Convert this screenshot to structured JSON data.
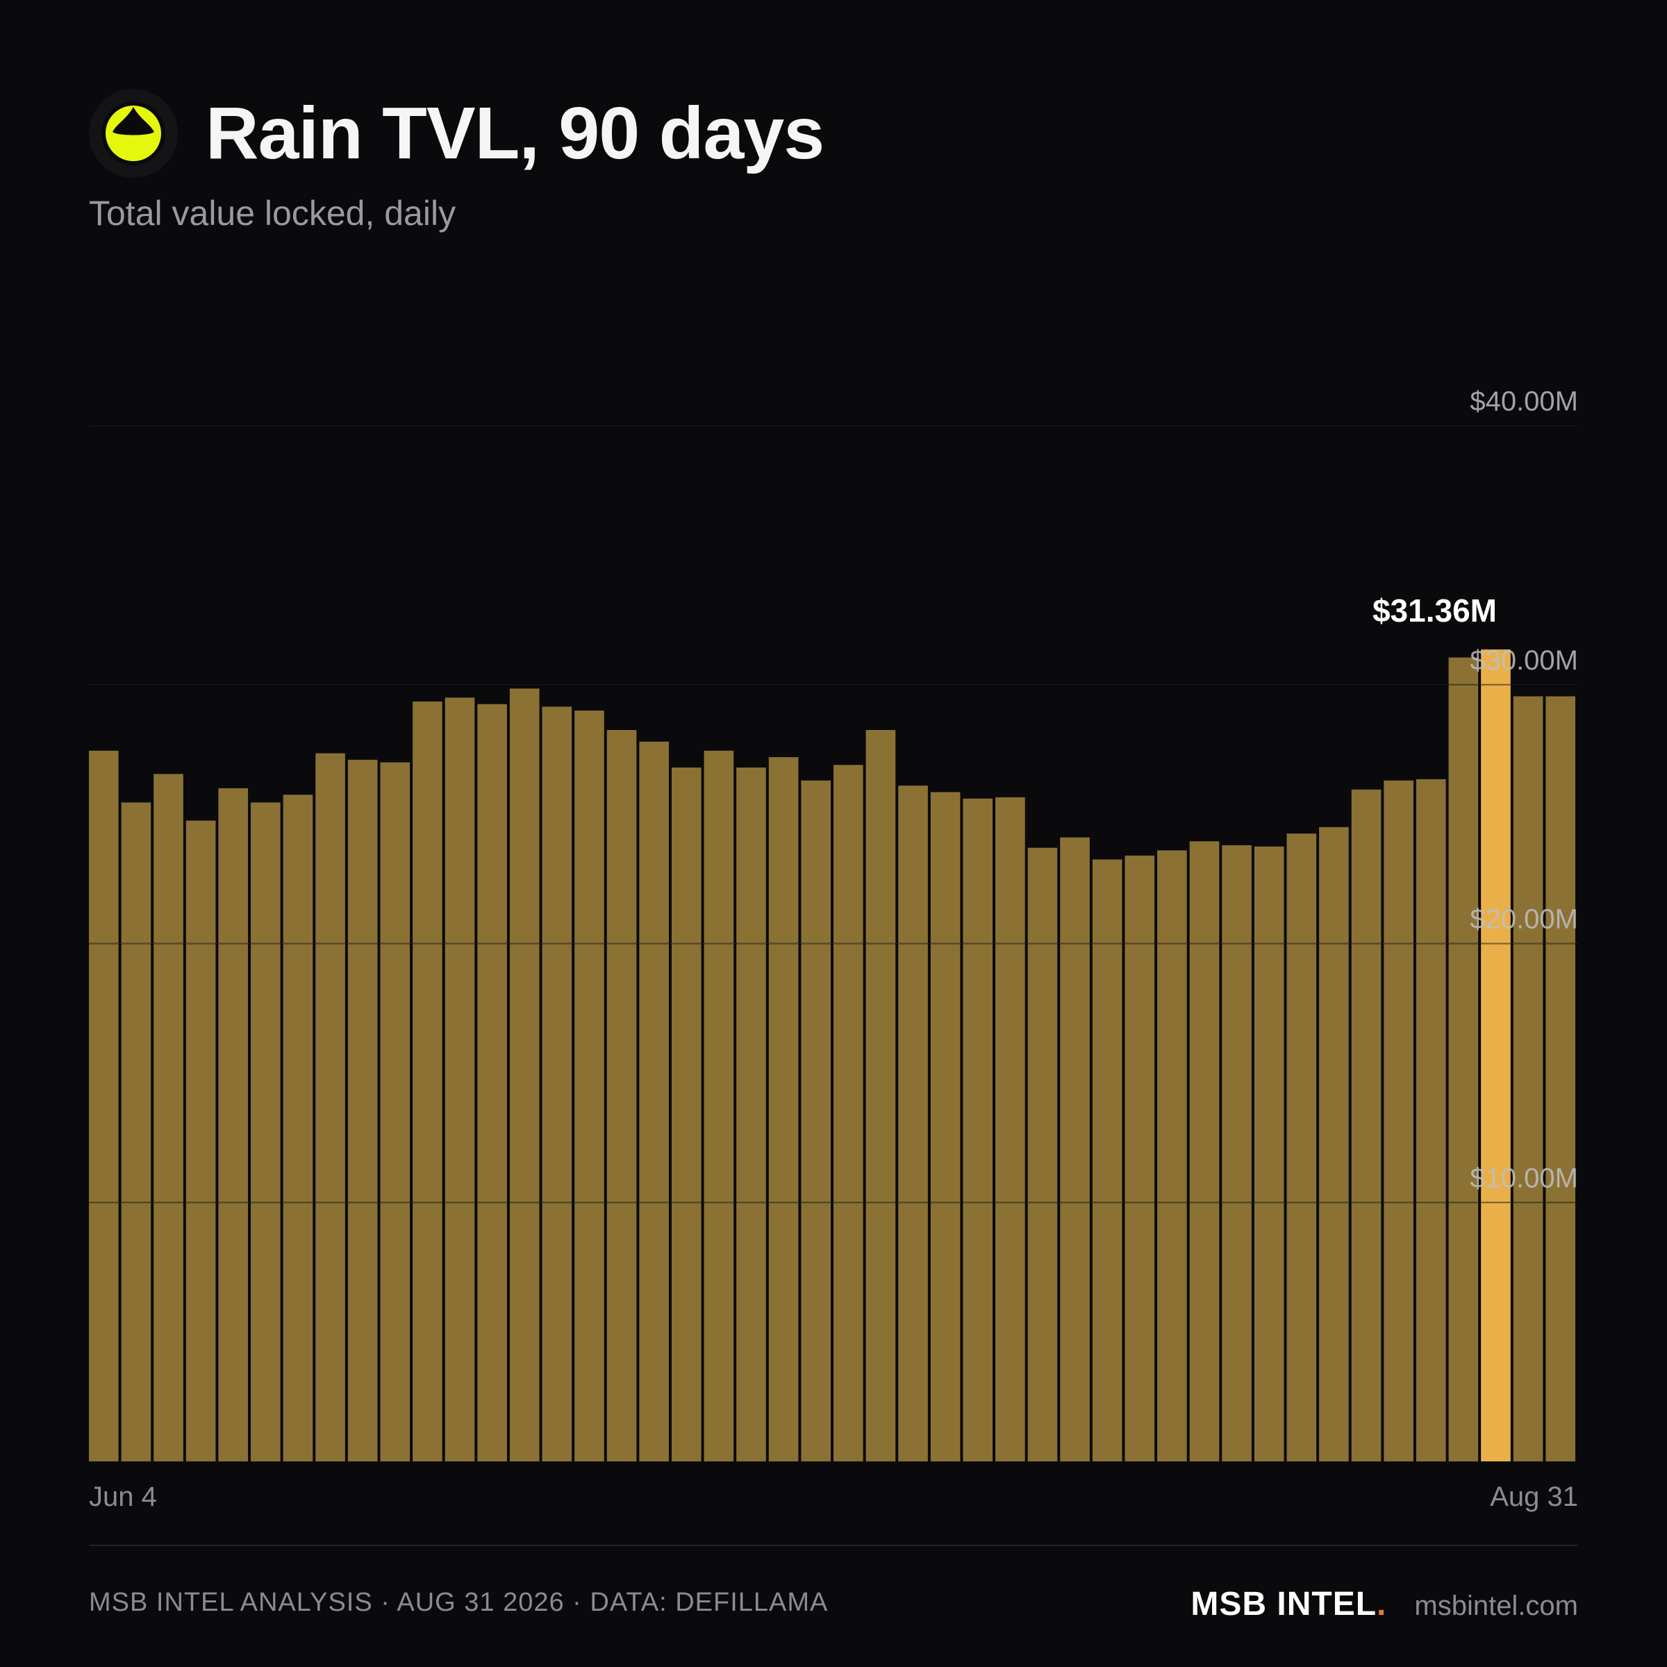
{
  "header": {
    "logo_icon": "rain-logo-icon",
    "title": "Rain TVL, 90 days",
    "subtitle": "Total value locked, daily"
  },
  "colors": {
    "background": "#0a0a0c",
    "bar": "#8b7234",
    "bar_highlight": "#e9b04a",
    "logo_yellow": "#e4f70c"
  },
  "chart_data": {
    "type": "bar",
    "title": "Rain TVL, 90 days",
    "subtitle": "Total value locked, daily",
    "x_start_label": "Jun 4",
    "x_end_label": "Aug 31",
    "ylim": [
      0,
      40
    ],
    "y_unit": "$M",
    "y_ticks": [
      10,
      20,
      30,
      40
    ],
    "y_tick_labels": [
      "$10.00M",
      "$20.00M",
      "$30.00M",
      "$40.00M"
    ],
    "grid": true,
    "values": [
      27.45,
      25.45,
      26.55,
      24.75,
      26.0,
      25.45,
      25.75,
      27.35,
      27.1,
      27.0,
      29.35,
      29.5,
      29.25,
      29.85,
      29.15,
      29.0,
      28.25,
      27.8,
      26.8,
      27.45,
      26.8,
      27.2,
      26.3,
      26.9,
      28.25,
      26.1,
      25.85,
      25.6,
      25.65,
      23.7,
      24.1,
      23.25,
      23.4,
      23.6,
      23.95,
      23.8,
      23.75,
      24.25,
      24.5,
      25.95,
      26.3,
      26.35,
      31.05,
      31.36,
      29.55,
      29.55
    ],
    "highlight_index": 43,
    "highlight_label": "$31.36M"
  },
  "footer": {
    "source": "MSB INTEL ANALYSIS · AUG 31 2026 · DATA: DEFILLAMA",
    "brand": "MSB INTEL",
    "brand_dot": ".",
    "site": "msbintel.com"
  }
}
